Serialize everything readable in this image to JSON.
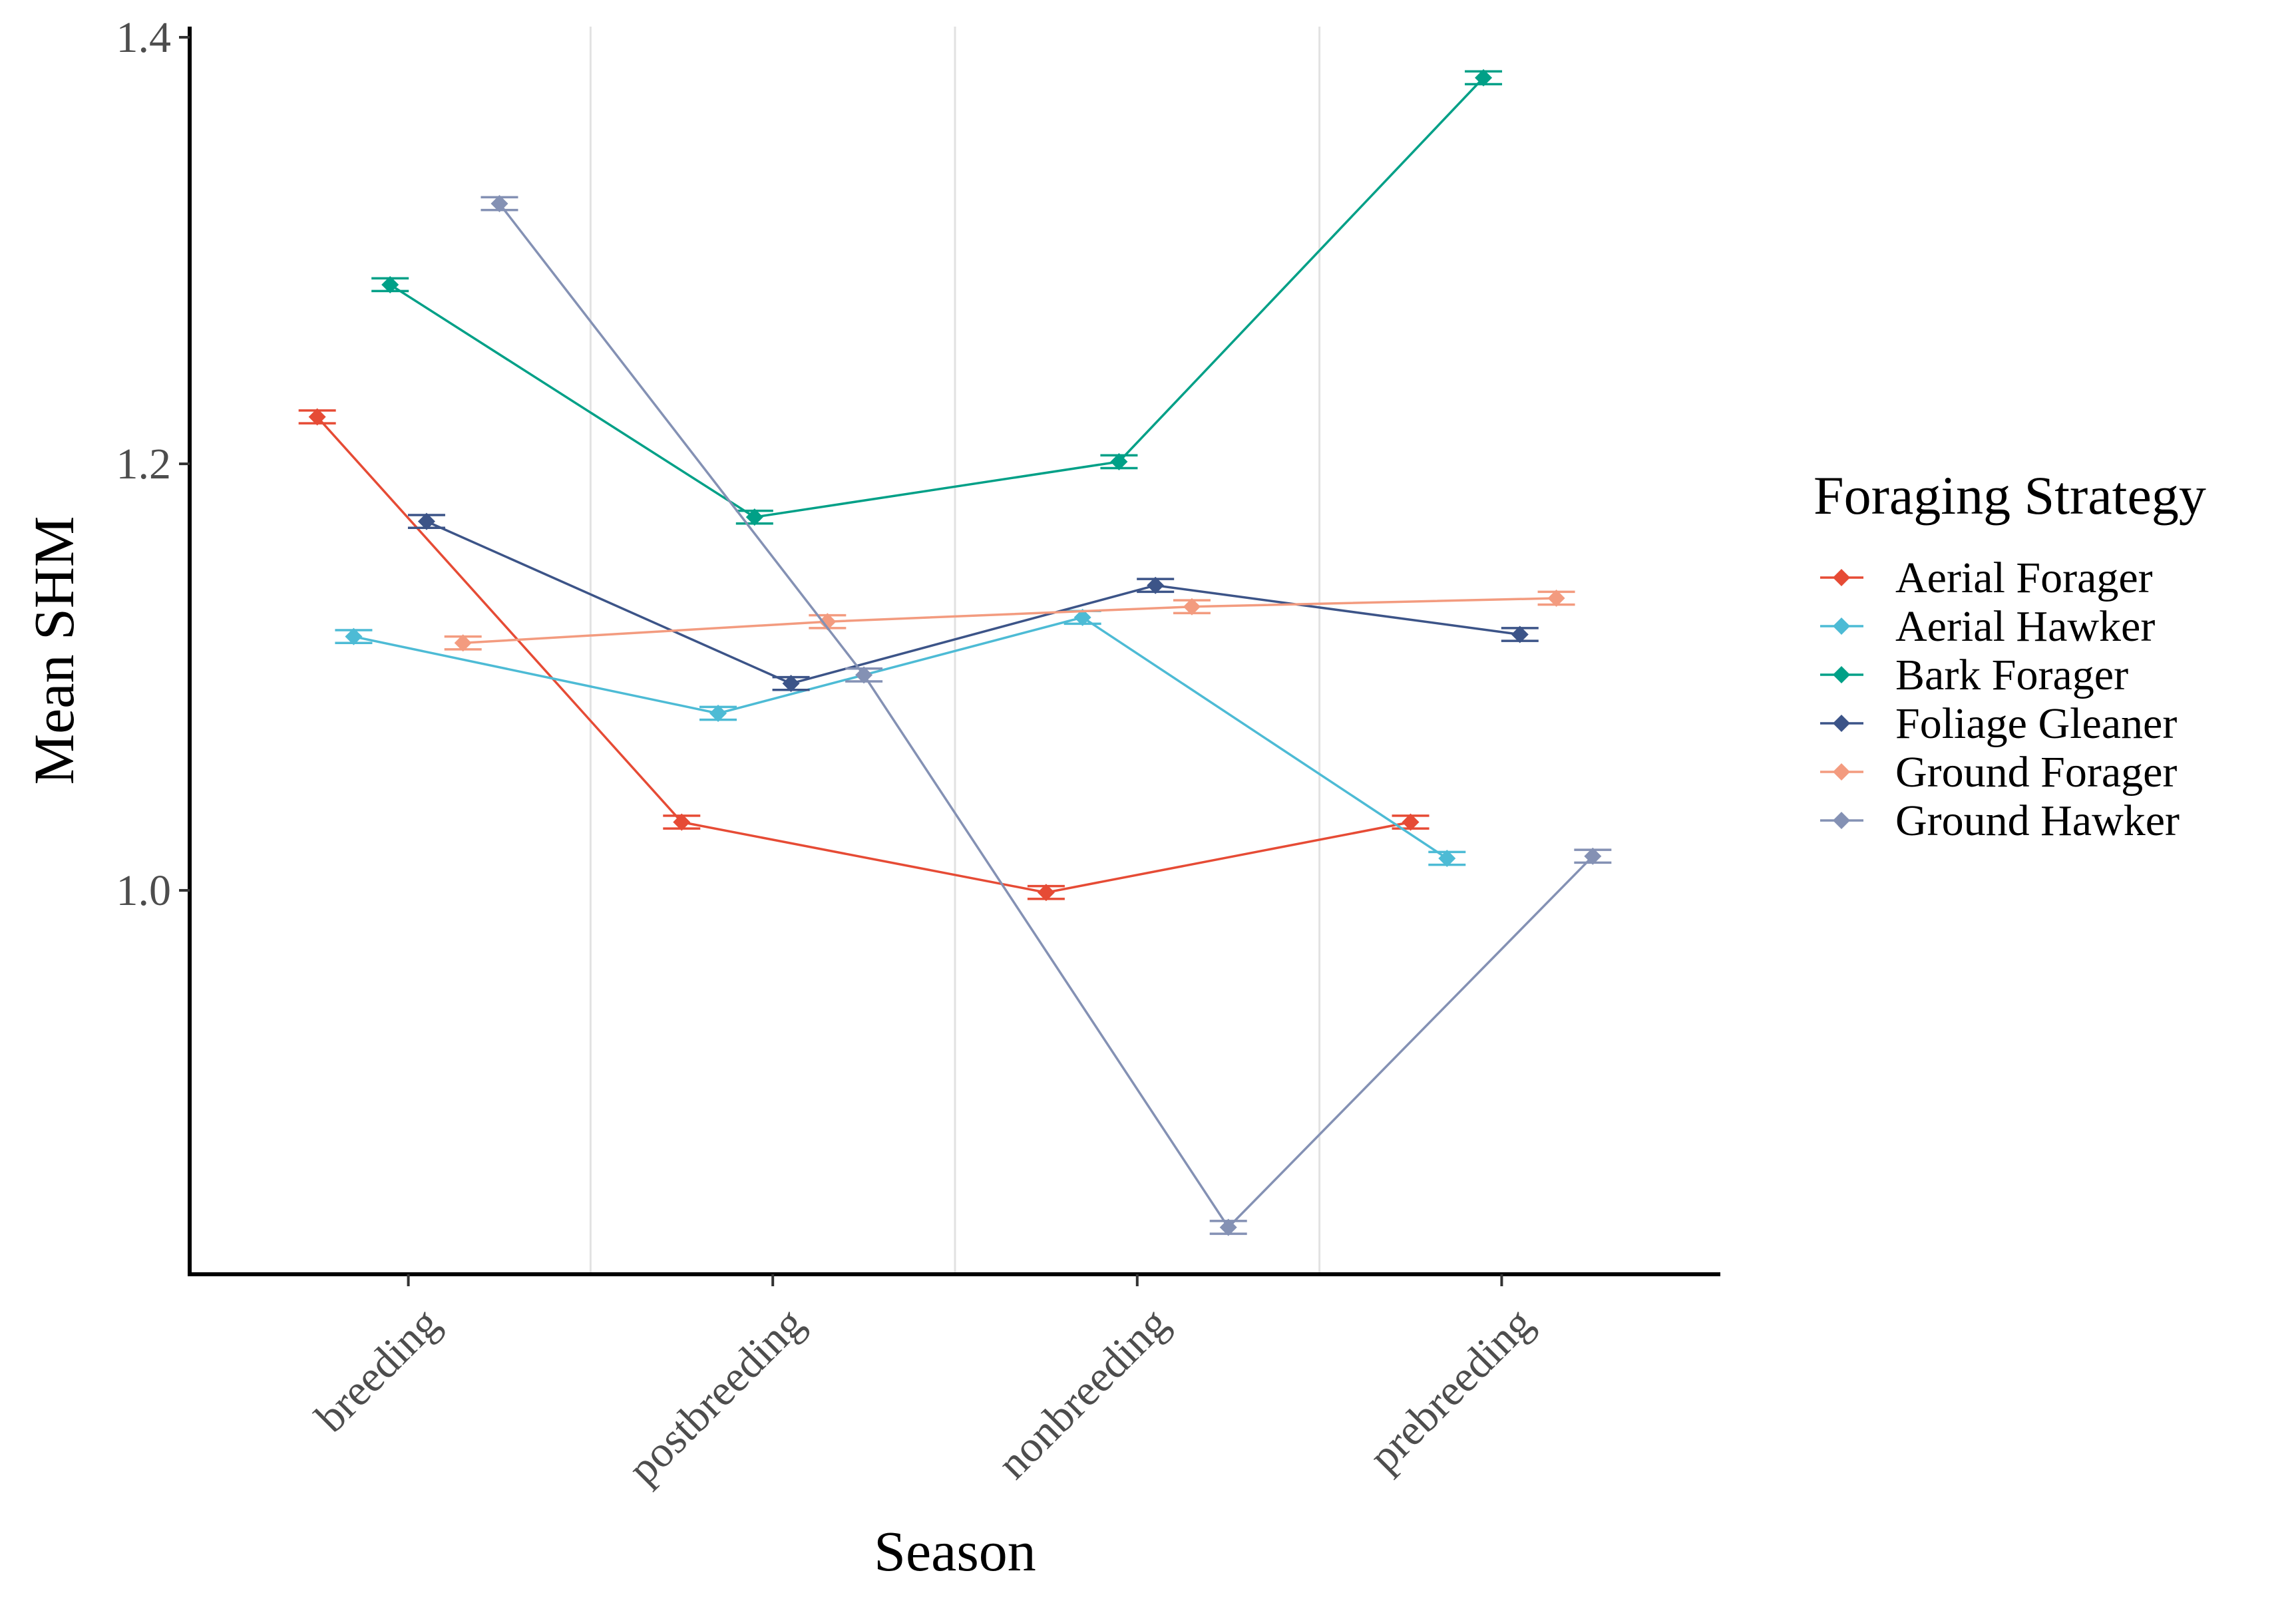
{
  "chart_data": {
    "type": "line",
    "xlabel": "Season",
    "ylabel": "Mean SHM",
    "categories": [
      "breeding",
      "postbreeding",
      "nonbreeding",
      "prebreeding"
    ],
    "ylim": [
      0.82,
      1.405
    ],
    "yticks": [
      1.0,
      1.2,
      1.4
    ],
    "ytick_labels": [
      "1.0",
      "1.2",
      "1.4"
    ],
    "grid": "vertical minor gridlines between seasons",
    "legend": {
      "title": "Foraging Strategy",
      "placement": "right"
    },
    "error_bar_halfwidth": 0.003,
    "series": [
      {
        "name": "Aerial Forager",
        "color": "#E64B35",
        "dodge": -0.25,
        "values": [
          1.222,
          1.032,
          0.999,
          1.032
        ]
      },
      {
        "name": "Aerial Hawker",
        "color": "#4DBBD5",
        "dodge": -0.15,
        "values": [
          1.119,
          1.083,
          1.128,
          1.015
        ]
      },
      {
        "name": "Bark Forager",
        "color": "#00A087",
        "dodge": -0.05,
        "values": [
          1.284,
          1.175,
          1.201,
          1.381
        ]
      },
      {
        "name": "Foliage Gleaner",
        "color": "#3C5488",
        "dodge": 0.05,
        "values": [
          1.173,
          1.097,
          1.143,
          1.12
        ]
      },
      {
        "name": "Ground Forager",
        "color": "#F39B7F",
        "dodge": 0.15,
        "values": [
          1.116,
          1.126,
          1.133,
          1.137
        ]
      },
      {
        "name": "Ground Hawker",
        "color": "#8491B4",
        "dodge": 0.25,
        "values": [
          1.322,
          1.101,
          0.842,
          1.016
        ]
      }
    ]
  }
}
